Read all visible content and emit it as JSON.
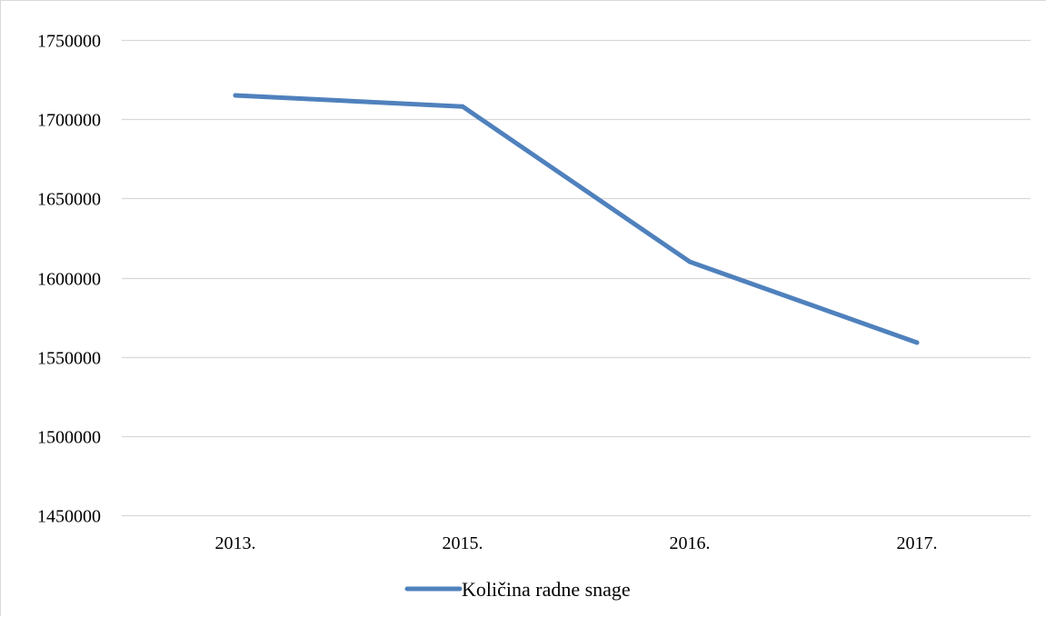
{
  "chart_data": {
    "type": "line",
    "title": "",
    "xlabel": "",
    "ylabel": "",
    "categories": [
      "2013.",
      "2015.",
      "2016.",
      "2017."
    ],
    "series": [
      {
        "name": "Količina radne snage",
        "values": [
          1715000,
          1708000,
          1610000,
          1559000
        ],
        "color": "#4f81bd"
      }
    ],
    "ylim": [
      1450000,
      1750000
    ],
    "yticks": [
      1450000,
      1500000,
      1550000,
      1600000,
      1650000,
      1700000,
      1750000
    ],
    "grid": true,
    "gridColor": "#d9d9d9",
    "legend_position": "bottom"
  }
}
